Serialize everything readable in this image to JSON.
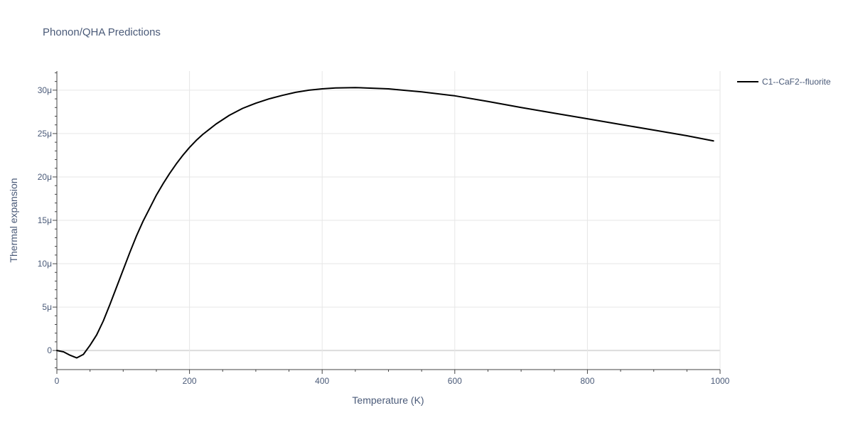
{
  "chart_data": {
    "type": "line",
    "title": "Phonon/QHA Predictions",
    "xlabel": "Temperature (K)",
    "ylabel": "Thermal expansion",
    "xlim": [
      0,
      1000
    ],
    "ylim": [
      -2.2,
      32.2
    ],
    "x_ticks": [
      0,
      200,
      400,
      600,
      800,
      1000
    ],
    "x_tick_labels": [
      "0",
      "200",
      "400",
      "600",
      "800",
      "1000"
    ],
    "y_ticks": [
      0,
      5,
      10,
      15,
      20,
      25,
      30
    ],
    "y_tick_labels": [
      "0",
      "5μ",
      "10μ",
      "15μ",
      "20μ",
      "25μ",
      "30μ"
    ],
    "y_unit_scale": "μ (×1e-6)",
    "grid": true,
    "legend_position": "top-right",
    "series": [
      {
        "name": "C1--CaF2--fluorite",
        "color": "#000000",
        "x": [
          0,
          10,
          20,
          30,
          40,
          50,
          60,
          70,
          80,
          90,
          100,
          110,
          120,
          130,
          140,
          150,
          160,
          170,
          180,
          190,
          200,
          210,
          220,
          230,
          240,
          250,
          260,
          270,
          280,
          290,
          300,
          320,
          340,
          360,
          380,
          400,
          420,
          450,
          500,
          550,
          600,
          650,
          700,
          750,
          800,
          850,
          900,
          950,
          990
        ],
        "y": [
          0,
          -0.15,
          -0.55,
          -0.85,
          -0.45,
          0.6,
          1.8,
          3.4,
          5.3,
          7.3,
          9.3,
          11.3,
          13.2,
          14.9,
          16.4,
          17.9,
          19.2,
          20.4,
          21.5,
          22.5,
          23.4,
          24.2,
          24.9,
          25.5,
          26.1,
          26.6,
          27.1,
          27.5,
          27.9,
          28.2,
          28.5,
          29.0,
          29.4,
          29.75,
          30.0,
          30.15,
          30.25,
          30.3,
          30.15,
          29.8,
          29.35,
          28.7,
          28.0,
          27.35,
          26.7,
          26.05,
          25.4,
          24.75,
          24.15
        ]
      }
    ]
  }
}
